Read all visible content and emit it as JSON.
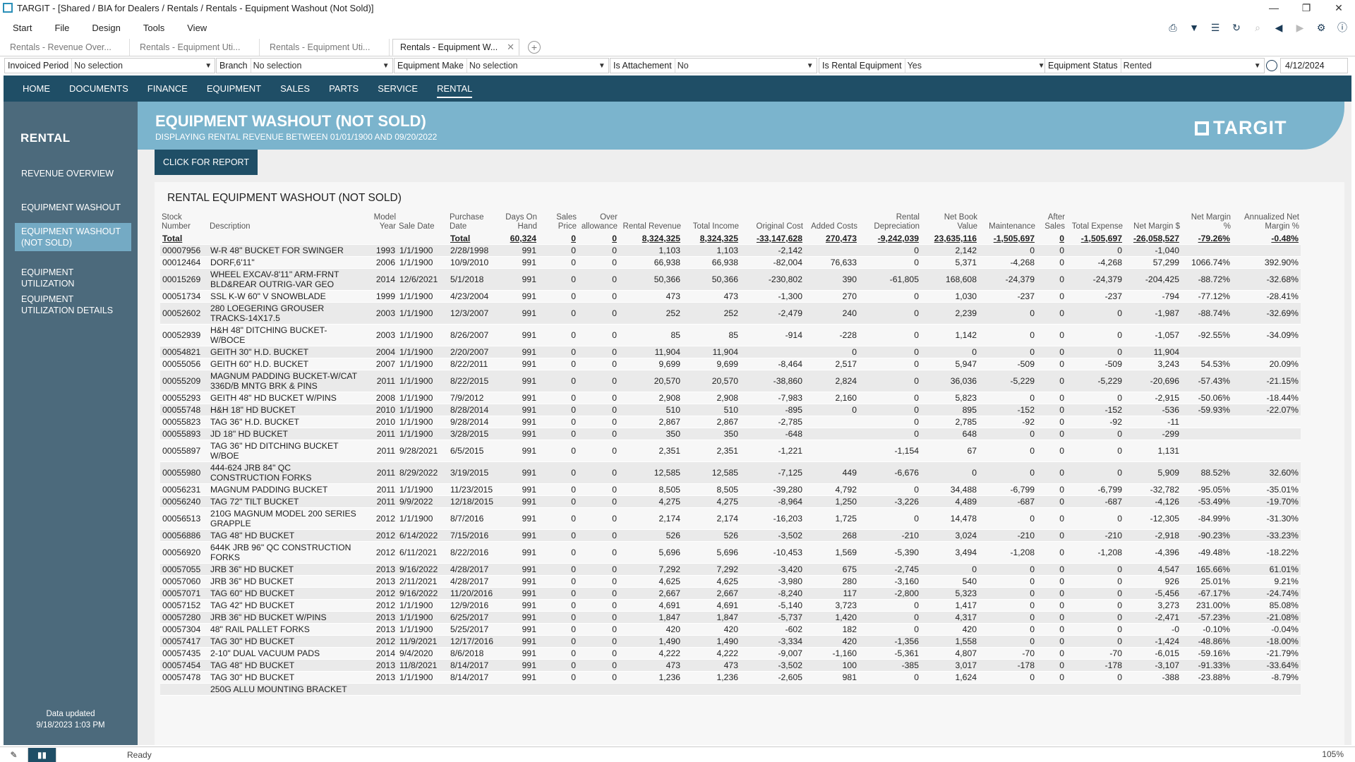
{
  "window": {
    "title": "TARGIT - [Shared / BIA for Dealers / Rentals / Rentals - Equipment Washout (Not Sold)]"
  },
  "menu": [
    "Start",
    "File",
    "Design",
    "Tools",
    "View"
  ],
  "tabs": [
    {
      "label": "Rentals - Revenue Over..."
    },
    {
      "label": "Rentals - Equipment Uti..."
    },
    {
      "label": "Rentals - Equipment Uti..."
    },
    {
      "label": "Rentals - Equipment W..."
    }
  ],
  "filters": [
    {
      "label": "Invoiced Period",
      "value": "No selection"
    },
    {
      "label": "Branch",
      "value": "No selection"
    },
    {
      "label": "Equipment Make",
      "value": "No selection"
    },
    {
      "label": "Is Attachement",
      "value": "No"
    },
    {
      "label": "Is Rental Equipment",
      "value": "Yes"
    },
    {
      "label": "Equipment Status",
      "value": "Rented"
    }
  ],
  "date": "4/12/2024",
  "nav": [
    "HOME",
    "DOCUMENTS",
    "FINANCE",
    "EQUIPMENT",
    "SALES",
    "PARTS",
    "SERVICE",
    "RENTAL"
  ],
  "sidebar": {
    "title": "RENTAL",
    "items": [
      "REVENUE OVERVIEW",
      "EQUIPMENT WASHOUT",
      "EQUIPMENT WASHOUT (NOT SOLD)",
      "EQUIPMENT UTILIZATION",
      "EQUIPMENT UTILIZATION DETAILS"
    ],
    "footer_label": "Data updated",
    "footer_value": "9/18/2023 1:03 PM"
  },
  "banner": {
    "title": "EQUIPMENT WASHOUT (NOT SOLD)",
    "subtitle": "DISPLAYING RENTAL REVENUE BETWEEN 01/01/1900 AND 09/20/2022",
    "logo": "TARGIT"
  },
  "report_button": "CLICK FOR REPORT",
  "table_title": "RENTAL EQUIPMENT WASHOUT (NOT SOLD)",
  "columns": [
    "Stock Number",
    "Description",
    "Model Year",
    "Sale Date",
    "Purchase Date",
    "Days On Hand",
    "Sales Price",
    "Over allowance",
    "Rental Revenue",
    "Total Income",
    "Original Cost",
    "Added Costs",
    "Rental Depreciation",
    "Net Book Value",
    "Maintenance",
    "After Sales",
    "Total Expense",
    "Net Margin $",
    "Net Margin %",
    "Annualized Net Margin %"
  ],
  "total_row": [
    "Total",
    "",
    "",
    "",
    "Total",
    "60,324",
    "0",
    "0",
    "8,324,325",
    "8,324,325",
    "-33,147,628",
    "270,473",
    "-9,242,039",
    "23,635,116",
    "-1,505,697",
    "0",
    "-1,505,697",
    "-26,058,527",
    "-79.26%",
    "-0.48%"
  ],
  "rows": [
    [
      "00007956",
      "W-R 48\" BUCKET FOR SWINGER",
      "1993",
      "1/1/1900",
      "2/28/1998",
      "991",
      "0",
      "0",
      "1,103",
      "1,103",
      "-2,142",
      "",
      "0",
      "2,142",
      "0",
      "0",
      "0",
      "-1,040",
      "",
      ""
    ],
    [
      "00012464",
      "DORF,6'11\"",
      "2006",
      "1/1/1900",
      "10/9/2010",
      "991",
      "0",
      "0",
      "66,938",
      "66,938",
      "-82,004",
      "76,633",
      "0",
      "5,371",
      "-4,268",
      "0",
      "-4,268",
      "57,299",
      "1066.74%",
      "392.90%"
    ],
    [
      "00015269",
      "WHEEL EXCAV-8'11\" ARM-FRNT BLD&REAR OUTRIG-VAR GEO",
      "2014",
      "12/6/2021",
      "5/1/2018",
      "991",
      "0",
      "0",
      "50,366",
      "50,366",
      "-230,802",
      "390",
      "-61,805",
      "168,608",
      "-24,379",
      "0",
      "-24,379",
      "-204,425",
      "-88.72%",
      "-32.68%"
    ],
    [
      "00051734",
      "SSL K-W 60\" V SNOWBLADE",
      "1999",
      "1/1/1900",
      "4/23/2004",
      "991",
      "0",
      "0",
      "473",
      "473",
      "-1,300",
      "270",
      "0",
      "1,030",
      "-237",
      "0",
      "-237",
      "-794",
      "-77.12%",
      "-28.41%"
    ],
    [
      "00052602",
      "280 LOEGERING GROUSER TRACKS-14X17.5",
      "2003",
      "1/1/1900",
      "12/3/2007",
      "991",
      "0",
      "0",
      "252",
      "252",
      "-2,479",
      "240",
      "0",
      "2,239",
      "0",
      "0",
      "0",
      "-1,987",
      "-88.74%",
      "-32.69%"
    ],
    [
      "00052939",
      "H&H 48\" DITCHING BUCKET-W/BOCE",
      "2003",
      "1/1/1900",
      "8/26/2007",
      "991",
      "0",
      "0",
      "85",
      "85",
      "-914",
      "-228",
      "0",
      "1,142",
      "0",
      "0",
      "0",
      "-1,057",
      "-92.55%",
      "-34.09%"
    ],
    [
      "00054821",
      "GEITH 30\" H.D. BUCKET",
      "2004",
      "1/1/1900",
      "2/20/2007",
      "991",
      "0",
      "0",
      "11,904",
      "11,904",
      "",
      "0",
      "0",
      "0",
      "0",
      "0",
      "0",
      "11,904",
      "",
      ""
    ],
    [
      "00055056",
      "GEITH 60\" H.D. BUCKET",
      "2007",
      "1/1/1900",
      "8/22/2011",
      "991",
      "0",
      "0",
      "9,699",
      "9,699",
      "-8,464",
      "2,517",
      "0",
      "5,947",
      "-509",
      "0",
      "-509",
      "3,243",
      "54.53%",
      "20.09%"
    ],
    [
      "00055209",
      "MAGNUM PADDING BUCKET-W/CAT 336D/B MNTG BRK & PINS",
      "2011",
      "1/1/1900",
      "8/22/2015",
      "991",
      "0",
      "0",
      "20,570",
      "20,570",
      "-38,860",
      "2,824",
      "0",
      "36,036",
      "-5,229",
      "0",
      "-5,229",
      "-20,696",
      "-57.43%",
      "-21.15%"
    ],
    [
      "00055293",
      "GEITH 48\" HD BUCKET W/PINS",
      "2008",
      "1/1/1900",
      "7/9/2012",
      "991",
      "0",
      "0",
      "2,908",
      "2,908",
      "-7,983",
      "2,160",
      "0",
      "5,823",
      "0",
      "0",
      "0",
      "-2,915",
      "-50.06%",
      "-18.44%"
    ],
    [
      "00055748",
      "H&H 18\" HD BUCKET",
      "2010",
      "1/1/1900",
      "8/28/2014",
      "991",
      "0",
      "0",
      "510",
      "510",
      "-895",
      "0",
      "0",
      "895",
      "-152",
      "0",
      "-152",
      "-536",
      "-59.93%",
      "-22.07%"
    ],
    [
      "00055823",
      "TAG 36\" H.D. BUCKET",
      "2010",
      "1/1/1900",
      "9/28/2014",
      "991",
      "0",
      "0",
      "2,867",
      "2,867",
      "-2,785",
      "",
      "0",
      "2,785",
      "-92",
      "0",
      "-92",
      "-11",
      "",
      ""
    ],
    [
      "00055893",
      "JD 18\" HD BUCKET",
      "2011",
      "1/1/1900",
      "3/28/2015",
      "991",
      "0",
      "0",
      "350",
      "350",
      "-648",
      "",
      "0",
      "648",
      "0",
      "0",
      "0",
      "-299",
      "",
      ""
    ],
    [
      "00055897",
      "TAG 36\" HD DITCHING BUCKET W/BOE",
      "2011",
      "9/28/2021",
      "6/5/2015",
      "991",
      "0",
      "0",
      "2,351",
      "2,351",
      "-1,221",
      "",
      "-1,154",
      "67",
      "0",
      "0",
      "0",
      "1,131",
      "",
      ""
    ],
    [
      "00055980",
      "444-624 JRB 84\" QC CONSTRUCTION FORKS",
      "2011",
      "8/29/2022",
      "3/19/2015",
      "991",
      "0",
      "0",
      "12,585",
      "12,585",
      "-7,125",
      "449",
      "-6,676",
      "0",
      "0",
      "0",
      "0",
      "5,909",
      "88.52%",
      "32.60%"
    ],
    [
      "00056231",
      "MAGNUM PADDING BUCKET",
      "2011",
      "1/1/1900",
      "11/23/2015",
      "991",
      "0",
      "0",
      "8,505",
      "8,505",
      "-39,280",
      "4,792",
      "0",
      "34,488",
      "-6,799",
      "0",
      "-6,799",
      "-32,782",
      "-95.05%",
      "-35.01%"
    ],
    [
      "00056240",
      "TAG 72\" TILT BUCKET",
      "2011",
      "9/9/2022",
      "12/18/2015",
      "991",
      "0",
      "0",
      "4,275",
      "4,275",
      "-8,964",
      "1,250",
      "-3,226",
      "4,489",
      "-687",
      "0",
      "-687",
      "-4,126",
      "-53.49%",
      "-19.70%"
    ],
    [
      "00056513",
      "210G MAGNUM MODEL 200 SERIES GRAPPLE",
      "2012",
      "1/1/1900",
      "8/7/2016",
      "991",
      "0",
      "0",
      "2,174",
      "2,174",
      "-16,203",
      "1,725",
      "0",
      "14,478",
      "0",
      "0",
      "0",
      "-12,305",
      "-84.99%",
      "-31.30%"
    ],
    [
      "00056886",
      "TAG 48\" HD BUCKET",
      "2012",
      "6/14/2022",
      "7/15/2016",
      "991",
      "0",
      "0",
      "526",
      "526",
      "-3,502",
      "268",
      "-210",
      "3,024",
      "-210",
      "0",
      "-210",
      "-2,918",
      "-90.23%",
      "-33.23%"
    ],
    [
      "00056920",
      "644K JRB 96\" QC CONSTRUCTION FORKS",
      "2012",
      "6/11/2021",
      "8/22/2016",
      "991",
      "0",
      "0",
      "5,696",
      "5,696",
      "-10,453",
      "1,569",
      "-5,390",
      "3,494",
      "-1,208",
      "0",
      "-1,208",
      "-4,396",
      "-49.48%",
      "-18.22%"
    ],
    [
      "00057055",
      "JRB 36\" HD BUCKET",
      "2013",
      "9/16/2022",
      "4/28/2017",
      "991",
      "0",
      "0",
      "7,292",
      "7,292",
      "-3,420",
      "675",
      "-2,745",
      "0",
      "0",
      "0",
      "0",
      "4,547",
      "165.66%",
      "61.01%"
    ],
    [
      "00057060",
      "JRB 36\" HD BUCKET",
      "2013",
      "2/11/2021",
      "4/28/2017",
      "991",
      "0",
      "0",
      "4,625",
      "4,625",
      "-3,980",
      "280",
      "-3,160",
      "540",
      "0",
      "0",
      "0",
      "926",
      "25.01%",
      "9.21%"
    ],
    [
      "00057071",
      "TAG 60\" HD BUCKET",
      "2012",
      "9/16/2022",
      "11/20/2016",
      "991",
      "0",
      "0",
      "2,667",
      "2,667",
      "-8,240",
      "117",
      "-2,800",
      "5,323",
      "0",
      "0",
      "0",
      "-5,456",
      "-67.17%",
      "-24.74%"
    ],
    [
      "00057152",
      "TAG 42\" HD BUCKET",
      "2012",
      "1/1/1900",
      "12/9/2016",
      "991",
      "0",
      "0",
      "4,691",
      "4,691",
      "-5,140",
      "3,723",
      "0",
      "1,417",
      "0",
      "0",
      "0",
      "3,273",
      "231.00%",
      "85.08%"
    ],
    [
      "00057280",
      "JRB 36\" HD BUCKET W/PINS",
      "2013",
      "1/1/1900",
      "6/25/2017",
      "991",
      "0",
      "0",
      "1,847",
      "1,847",
      "-5,737",
      "1,420",
      "0",
      "4,317",
      "0",
      "0",
      "0",
      "-2,471",
      "-57.23%",
      "-21.08%"
    ],
    [
      "00057304",
      "48\" RAIL PALLET FORKS",
      "2013",
      "1/1/1900",
      "5/25/2017",
      "991",
      "0",
      "0",
      "420",
      "420",
      "-602",
      "182",
      "0",
      "420",
      "0",
      "0",
      "0",
      "-0",
      "-0.10%",
      "-0.04%"
    ],
    [
      "00057417",
      "TAG 30\" HD BUCKET",
      "2012",
      "11/9/2021",
      "12/17/2016",
      "991",
      "0",
      "0",
      "1,490",
      "1,490",
      "-3,334",
      "420",
      "-1,356",
      "1,558",
      "0",
      "0",
      "0",
      "-1,424",
      "-48.86%",
      "-18.00%"
    ],
    [
      "00057435",
      "2-10\" DUAL VACUUM PADS",
      "2014",
      "9/4/2020",
      "8/6/2018",
      "991",
      "0",
      "0",
      "4,222",
      "4,222",
      "-9,007",
      "-1,160",
      "-5,361",
      "4,807",
      "-70",
      "0",
      "-70",
      "-6,015",
      "-59.16%",
      "-21.79%"
    ],
    [
      "00057454",
      "TAG 48\" HD BUCKET",
      "2013",
      "11/8/2021",
      "8/14/2017",
      "991",
      "0",
      "0",
      "473",
      "473",
      "-3,502",
      "100",
      "-385",
      "3,017",
      "-178",
      "0",
      "-178",
      "-3,107",
      "-91.33%",
      "-33.64%"
    ],
    [
      "00057478",
      "TAG 30\" HD BUCKET",
      "2013",
      "1/1/1900",
      "8/14/2017",
      "991",
      "0",
      "0",
      "1,236",
      "1,236",
      "-2,605",
      "981",
      "0",
      "1,624",
      "0",
      "0",
      "0",
      "-388",
      "-23.88%",
      "-8.79%"
    ],
    [
      "",
      "250G ALLU MOUNTING BRACKET",
      "",
      "",
      "",
      "",
      "",
      "",
      "",
      "",
      "",
      "",
      "",
      "",
      "",
      "",
      "",
      "",
      "",
      ""
    ]
  ],
  "status": {
    "text": "Ready",
    "zoom": "105%"
  }
}
